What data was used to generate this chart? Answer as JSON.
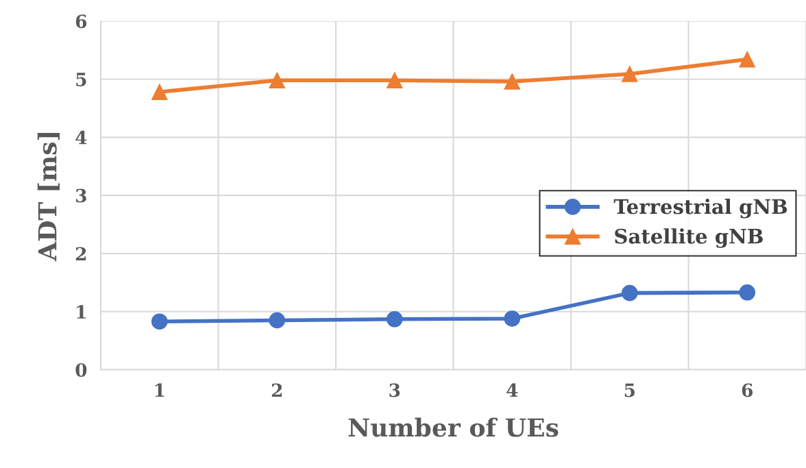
{
  "chart_data": {
    "type": "line",
    "xlabel": "Number of UEs",
    "ylabel": "ADT [ms]",
    "categories": [
      "1",
      "2",
      "3",
      "4",
      "5",
      "6"
    ],
    "series": [
      {
        "name": "Terrestrial gNB",
        "color": "#4472c4",
        "marker": "circle",
        "values": [
          0.83,
          0.85,
          0.87,
          0.88,
          1.32,
          1.33
        ]
      },
      {
        "name": "Satellite gNB",
        "color": "#ed7d31",
        "marker": "triangle",
        "values": [
          4.78,
          4.98,
          4.98,
          4.96,
          5.09,
          5.34
        ]
      }
    ],
    "ylim": [
      0,
      6
    ],
    "yticks": [
      0,
      1,
      2,
      3,
      4,
      5,
      6
    ],
    "grid": true,
    "legend": "right"
  }
}
